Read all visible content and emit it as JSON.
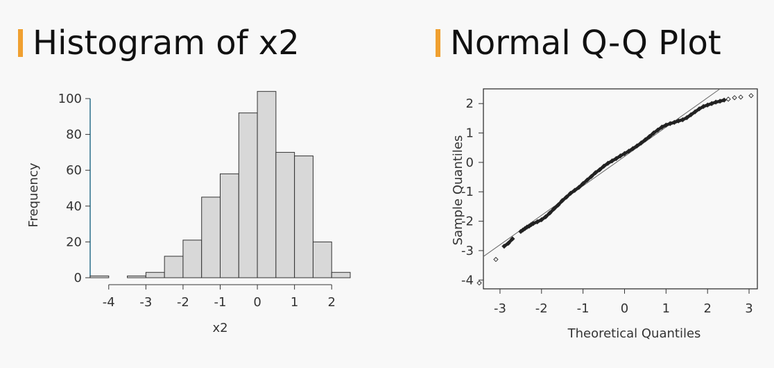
{
  "headings": {
    "left": "Histogram of x2",
    "right": "Normal Q-Q Plot"
  },
  "colors": {
    "accent": "#f0a030",
    "bar_fill": "#d8d8d8",
    "bar_stroke": "#333333",
    "y_axis_line": "#2a6f8a"
  },
  "chart_data": [
    {
      "type": "bar",
      "kind": "histogram",
      "title": "Histogram of x2",
      "xlabel": "x2",
      "ylabel": "Frequency",
      "bin_edges": [
        -4.5,
        -4.0,
        -3.5,
        -3.0,
        -2.5,
        -2.0,
        -1.5,
        -1.0,
        -0.5,
        0.0,
        0.5,
        1.0,
        1.5,
        2.0,
        2.5
      ],
      "values": [
        1,
        0,
        1,
        3,
        12,
        21,
        45,
        58,
        92,
        104,
        70,
        68,
        20,
        3
      ],
      "xlim": [
        -4.5,
        2.5
      ],
      "ylim": [
        0,
        100
      ],
      "xticks": [
        -4,
        -3,
        -2,
        -1,
        0,
        1,
        2
      ],
      "xtick_labels": [
        "-4",
        "-3",
        "-2",
        "-1",
        "0",
        "1",
        "2"
      ],
      "yticks": [
        0,
        20,
        40,
        60,
        80,
        100
      ],
      "ytick_labels": [
        "0",
        "20",
        "40",
        "60",
        "80",
        "100"
      ]
    },
    {
      "type": "scatter",
      "kind": "qq",
      "title": "Normal Q-Q Plot",
      "xlabel": "Theoretical Quantiles",
      "ylabel": "Sample Quantiles",
      "xlim": [
        -3.4,
        3.2
      ],
      "ylim": [
        -4.3,
        2.5
      ],
      "xticks": [
        -3,
        -2,
        -1,
        0,
        1,
        2,
        3
      ],
      "xtick_labels": [
        "-3",
        "-2",
        "-1",
        "0",
        "1",
        "2",
        "3"
      ],
      "yticks": [
        -4,
        -3,
        -2,
        -1,
        0,
        1,
        2
      ],
      "ytick_labels": [
        "-4",
        "-3",
        "-2",
        "-1",
        "0",
        "1",
        "2"
      ],
      "reference_line": {
        "x": [
          -3.4,
          2.3
        ],
        "y": [
          -3.2,
          2.5
        ]
      },
      "points": {
        "x": [
          -3.5,
          -3.1,
          -2.9,
          -2.8,
          -2.7,
          -2.5,
          -2.45,
          -2.4,
          -2.35,
          -2.3,
          -2.25,
          -2.2,
          -2.1,
          -2.0,
          -1.9,
          -1.8,
          -1.7,
          -1.6,
          -1.5,
          -1.4,
          -1.3,
          -1.2,
          -1.1,
          -1.0,
          -0.9,
          -0.8,
          -0.7,
          -0.6,
          -0.5,
          -0.4,
          -0.3,
          -0.2,
          -0.1,
          0.0,
          0.1,
          0.2,
          0.3,
          0.4,
          0.5,
          0.6,
          0.7,
          0.8,
          0.9,
          1.0,
          1.1,
          1.2,
          1.3,
          1.4,
          1.5,
          1.6,
          1.7,
          1.8,
          1.9,
          2.0,
          2.1,
          2.2,
          2.3,
          2.4,
          2.5,
          2.65,
          2.8,
          3.05
        ],
        "y": [
          -4.1,
          -3.3,
          -2.85,
          -2.75,
          -2.6,
          -2.35,
          -2.3,
          -2.25,
          -2.2,
          -2.17,
          -2.12,
          -2.08,
          -2.02,
          -1.95,
          -1.85,
          -1.72,
          -1.58,
          -1.45,
          -1.3,
          -1.18,
          -1.05,
          -0.95,
          -0.85,
          -0.72,
          -0.6,
          -0.48,
          -0.35,
          -0.25,
          -0.13,
          -0.03,
          0.05,
          0.13,
          0.22,
          0.3,
          0.38,
          0.47,
          0.56,
          0.66,
          0.77,
          0.88,
          1.0,
          1.1,
          1.2,
          1.27,
          1.32,
          1.36,
          1.41,
          1.45,
          1.52,
          1.62,
          1.72,
          1.82,
          1.9,
          1.95,
          2.0,
          2.05,
          2.08,
          2.12,
          2.15,
          2.2,
          2.22,
          2.27
        ]
      }
    }
  ]
}
